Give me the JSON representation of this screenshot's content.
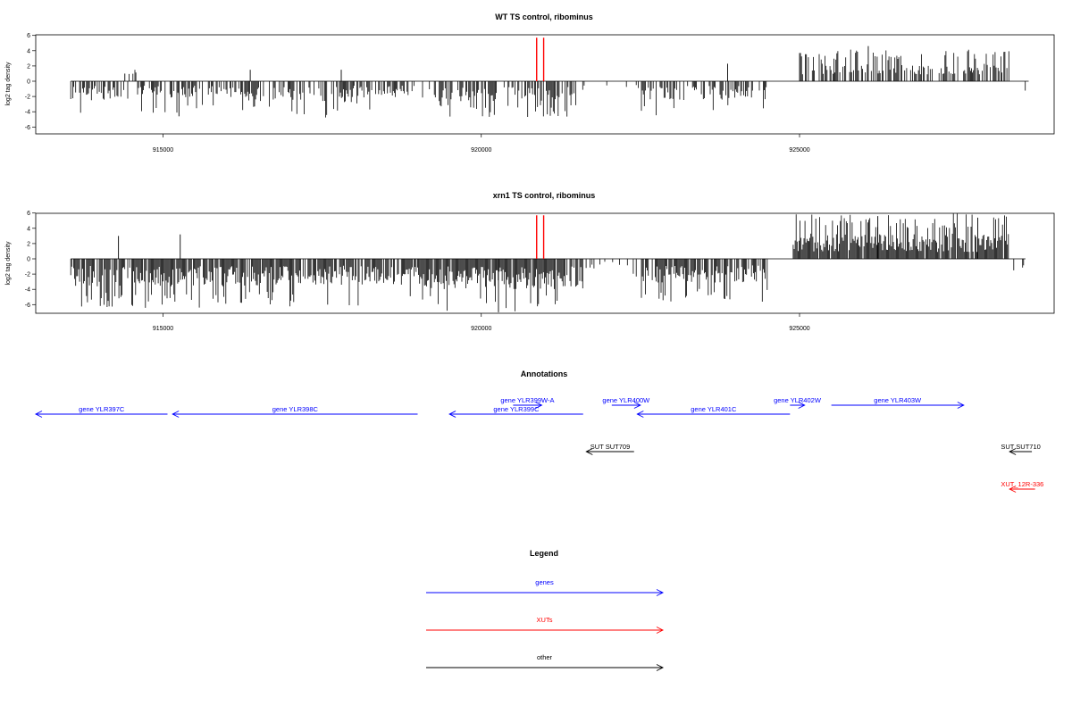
{
  "chart_data": [
    {
      "type": "bar",
      "title": "WT TS control, ribominus",
      "ylabel": "log2 tag density",
      "xlim": [
        913000,
        929000
      ],
      "ylim": [
        -7,
        6.5
      ],
      "yticks": [
        "6",
        "4",
        "2",
        "0",
        "-2",
        "-4",
        "-6"
      ],
      "xticks": [
        {
          "value": 915000,
          "label": "915000"
        },
        {
          "value": 920000,
          "label": "920000"
        },
        {
          "value": 925000,
          "label": "925000"
        }
      ],
      "marker_positions": [
        920870,
        920980
      ],
      "marker_color": "#ff0000",
      "marker_height": 5.7,
      "segments": [
        {
          "start": 913550,
          "end": 914450,
          "amp": -2.5,
          "density": 0.55,
          "spike_p": 0.15
        },
        {
          "start": 914450,
          "end": 914600,
          "amp": 1.0,
          "density": 0.3,
          "spike_p": 0.0
        },
        {
          "start": 914600,
          "end": 916300,
          "amp": -2.3,
          "density": 0.45,
          "spike_p": 0.2
        },
        {
          "start": 916300,
          "end": 917200,
          "amp": -2.6,
          "density": 0.55,
          "spike_p": 0.1
        },
        {
          "start": 917200,
          "end": 918000,
          "amp": -2.8,
          "density": 0.5,
          "spike_p": 0.2
        },
        {
          "start": 918000,
          "end": 919000,
          "amp": -2.2,
          "density": 0.5,
          "spike_p": 0.05
        },
        {
          "start": 919000,
          "end": 921600,
          "amp": -2.6,
          "density": 0.5,
          "spike_p": 0.25
        },
        {
          "start": 921600,
          "end": 922500,
          "amp": -1.0,
          "density": 0.15,
          "spike_p": 0.05
        },
        {
          "start": 922500,
          "end": 924500,
          "amp": -2.5,
          "density": 0.55,
          "spike_p": 0.15
        },
        {
          "start": 925000,
          "end": 928300,
          "amp": 2.3,
          "density": 0.55,
          "spike_p": 0.3
        },
        {
          "start": 928300,
          "end": 928600,
          "amp": -1.5,
          "density": 0.15,
          "spike_p": 0.0
        }
      ],
      "spikes": [
        {
          "x": 914400,
          "y": 1.0
        },
        {
          "x": 916370,
          "y": 1.5
        },
        {
          "x": 917800,
          "y": 1.5
        },
        {
          "x": 923870,
          "y": 2.3
        },
        {
          "x": 926080,
          "y": 4.6
        },
        {
          "x": 915250,
          "y": -4.6
        }
      ],
      "seed": 7
    },
    {
      "type": "bar",
      "title": "xrn1 TS control, ribominus",
      "ylabel": "log2 tag density",
      "xlim": [
        913000,
        929000
      ],
      "ylim": [
        -7,
        6.5
      ],
      "yticks": [
        "6",
        "4",
        "2",
        "0",
        "-2",
        "-4",
        "-6"
      ],
      "xticks": [
        {
          "value": 915000,
          "label": "915000"
        },
        {
          "value": 920000,
          "label": "920000"
        },
        {
          "value": 925000,
          "label": "925000"
        }
      ],
      "marker_positions": [
        920870,
        920980
      ],
      "marker_color": "#ff0000",
      "marker_height": 5.7,
      "segments": [
        {
          "start": 913550,
          "end": 915200,
          "amp": -3.6,
          "density": 0.85,
          "spike_p": 0.25
        },
        {
          "start": 915200,
          "end": 917200,
          "amp": -3.6,
          "density": 0.85,
          "spike_p": 0.2
        },
        {
          "start": 917200,
          "end": 919000,
          "amp": -3.4,
          "density": 0.8,
          "spike_p": 0.1
        },
        {
          "start": 919000,
          "end": 921600,
          "amp": -4.0,
          "density": 0.9,
          "spike_p": 0.1
        },
        {
          "start": 921600,
          "end": 922500,
          "amp": -1.3,
          "density": 0.25,
          "spike_p": 0.35
        },
        {
          "start": 922500,
          "end": 924500,
          "amp": -3.2,
          "density": 0.8,
          "spike_p": 0.25
        },
        {
          "start": 924900,
          "end": 928300,
          "amp": 3.3,
          "density": 0.95,
          "spike_p": 0.25
        },
        {
          "start": 928350,
          "end": 928550,
          "amp": -1.6,
          "density": 0.2,
          "spike_p": 0.0
        }
      ],
      "spikes": [
        {
          "x": 914300,
          "y": 3.0
        },
        {
          "x": 915270,
          "y": 3.2
        },
        {
          "x": 920270,
          "y": -7.0
        },
        {
          "x": 926230,
          "y": 5.6
        },
        {
          "x": 927800,
          "y": 5.4
        }
      ],
      "seed": 13
    }
  ],
  "annotations": {
    "title": "Annotations",
    "colors": {
      "genes": "#0000ff",
      "XUTs": "#ff0000",
      "other": "#000000"
    },
    "features": [
      {
        "label": "gene YLR397C",
        "kind": "genes",
        "strand": "-",
        "start": 913000,
        "end": 915070,
        "row": 1
      },
      {
        "label": "gene YLR398C",
        "kind": "genes",
        "strand": "-",
        "start": 915150,
        "end": 919000,
        "row": 1
      },
      {
        "label": "gene YLR399C",
        "kind": "genes",
        "strand": "-",
        "start": 919500,
        "end": 921600,
        "row": 1
      },
      {
        "label": "gene YLR399W-A",
        "kind": "genes",
        "strand": "+",
        "start": 920500,
        "end": 920950,
        "row": 0
      },
      {
        "label": "gene YLR400W",
        "kind": "genes",
        "strand": "+",
        "start": 922050,
        "end": 922500,
        "row": 0
      },
      {
        "label": "gene YLR401C",
        "kind": "genes",
        "strand": "-",
        "start": 922450,
        "end": 924850,
        "row": 1
      },
      {
        "label": "gene YLR402W",
        "kind": "genes",
        "strand": "+",
        "start": 924850,
        "end": 925080,
        "row": 0
      },
      {
        "label": "gene YLR403W",
        "kind": "genes",
        "strand": "+",
        "start": 925500,
        "end": 927580,
        "row": 0
      },
      {
        "label": "SUT SUT709",
        "kind": "other",
        "strand": "-",
        "start": 921650,
        "end": 922400,
        "row": 2
      },
      {
        "label": "SUT SUT710",
        "kind": "other",
        "strand": "-",
        "start": 928300,
        "end": 928650,
        "row": 2
      },
      {
        "label": "XUT_12R-336",
        "kind": "XUTs",
        "strand": "-",
        "start": 928300,
        "end": 928700,
        "row": 3
      }
    ]
  },
  "legend": {
    "title": "Legend",
    "items": [
      {
        "label": "genes",
        "color": "#0000ff"
      },
      {
        "label": "XUTs",
        "color": "#ff0000"
      },
      {
        "label": "other",
        "color": "#000000"
      }
    ]
  }
}
